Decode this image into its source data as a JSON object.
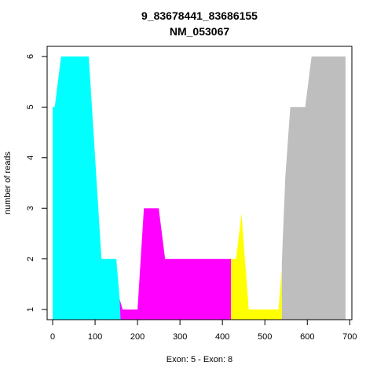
{
  "chart_data": {
    "type": "area",
    "title": "9_83678441_83686155",
    "subtitle": "NM_053067",
    "xlabel": "Exon: 5 - Exon: 8",
    "ylabel": "number of reads",
    "xlim": [
      -13,
      705
    ],
    "ylim": [
      0.8,
      6.2
    ],
    "xticks": [
      0,
      100,
      200,
      300,
      400,
      500,
      600,
      700
    ],
    "yticks": [
      1,
      2,
      3,
      4,
      5,
      6
    ],
    "grid": false,
    "series": [
      {
        "color": "#00FFFF",
        "points": [
          [
            0,
            5
          ],
          [
            5,
            5
          ],
          [
            20,
            6
          ],
          [
            85,
            6
          ],
          [
            100,
            4
          ],
          [
            115,
            2
          ],
          [
            150,
            2
          ],
          [
            160,
            1
          ],
          [
            160,
            0.8
          ],
          [
            0,
            0.8
          ]
        ]
      },
      {
        "color": "#FF00FF",
        "points": [
          [
            158,
            1.2
          ],
          [
            165,
            1
          ],
          [
            200,
            1
          ],
          [
            215,
            3
          ],
          [
            250,
            3
          ],
          [
            265,
            2
          ],
          [
            420,
            2
          ],
          [
            420,
            0.8
          ],
          [
            160,
            0.8
          ]
        ]
      },
      {
        "color": "#FFFF00",
        "points": [
          [
            420,
            2
          ],
          [
            432,
            2
          ],
          [
            445,
            2.9
          ],
          [
            462,
            1
          ],
          [
            532,
            1
          ],
          [
            540,
            1.8
          ],
          [
            540,
            0.8
          ],
          [
            420,
            0.8
          ]
        ]
      },
      {
        "color": "#BEBEBE",
        "points": [
          [
            540,
            1.9
          ],
          [
            548,
            3.6
          ],
          [
            560,
            5
          ],
          [
            595,
            5
          ],
          [
            610,
            6
          ],
          [
            690,
            6
          ],
          [
            690,
            0.8
          ],
          [
            540,
            0.8
          ]
        ]
      }
    ]
  }
}
